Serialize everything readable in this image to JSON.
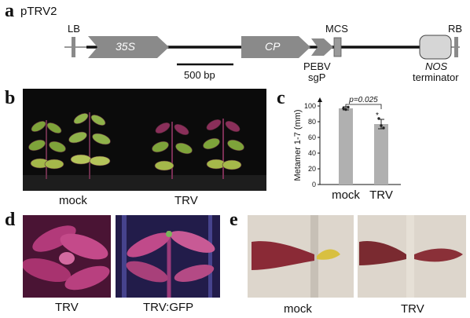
{
  "panel_a": {
    "letter": "a",
    "vector_name": "pTRV2",
    "lb": "LB",
    "promoter": "35S",
    "cp": "CP",
    "mcs": "MCS",
    "rb": "RB",
    "pebv": "PEBV",
    "sgp": "sgP",
    "nos": "NOS",
    "terminator": "terminator",
    "scale": "500 bp"
  },
  "panel_b": {
    "letter": "b",
    "label_left": "mock",
    "label_right": "TRV"
  },
  "panel_c": {
    "letter": "c"
  },
  "panel_d": {
    "letter": "d",
    "label_left": "TRV",
    "label_right": "TRV:GFP"
  },
  "panel_e": {
    "letter": "e",
    "label_left": "mock",
    "label_right": "TRV"
  },
  "colors": {
    "element_gray": "#8a8a8a",
    "bar_gray": "#b0b0b0",
    "plant_green": "#7ea33a",
    "plant_purple": "#8a2f5a"
  },
  "chart_data": {
    "type": "bar",
    "categories": [
      "mock",
      "TRV"
    ],
    "values": [
      97,
      77
    ],
    "errors": [
      2,
      6
    ],
    "points": [
      [
        97,
        95.5,
        98.5
      ],
      [
        84,
        75,
        72
      ]
    ],
    "ylabel": "Metamer 1-7 (mm)",
    "ylim": [
      0,
      100
    ],
    "yticks": [
      0,
      20,
      40,
      60,
      80,
      100
    ],
    "annotation": "p=0.025",
    "significance_marker": "*"
  }
}
